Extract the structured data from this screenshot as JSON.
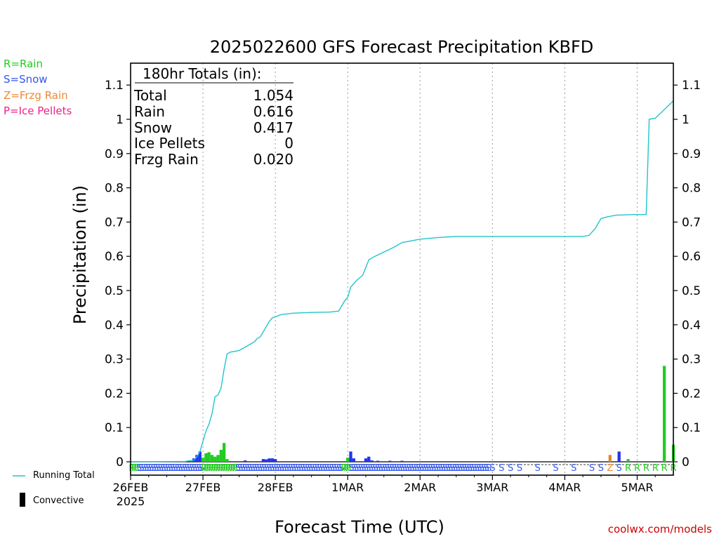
{
  "chart_data": {
    "type": "bar+line",
    "title": "2025022600 GFS Forecast Precipitation KBFD",
    "xlabel": "Forecast Time (UTC)",
    "ylabel": "Precipitation (in)",
    "ylim": [
      0,
      1.15
    ],
    "y_ticks": [
      0,
      0.1,
      0.2,
      0.3,
      0.4,
      0.5,
      0.6,
      0.7,
      0.8,
      0.9,
      1,
      1.1
    ],
    "y_tick_labels": [
      "0",
      "0.1",
      "0.2",
      "0.3",
      "0.4",
      "0.5",
      "0.6",
      "0.7",
      "0.8",
      "0.9",
      "1",
      "1.1"
    ],
    "x_range_hours": [
      0,
      180
    ],
    "x_ticks": [
      {
        "hour": 0,
        "label": "26FEB",
        "sublabel": "2025"
      },
      {
        "hour": 24,
        "label": "27FEB"
      },
      {
        "hour": 48,
        "label": "28FEB"
      },
      {
        "hour": 72,
        "label": "1MAR"
      },
      {
        "hour": 96,
        "label": "2MAR"
      },
      {
        "hour": 120,
        "label": "3MAR"
      },
      {
        "hour": 144,
        "label": "4MAR"
      },
      {
        "hour": 168,
        "label": "5MAR"
      }
    ],
    "grid_vertical": true,
    "totals_box": {
      "title": "180hr Totals (in):",
      "rows": [
        {
          "label": "Total",
          "value": "1.054"
        },
        {
          "label": "Rain",
          "value": "0.616"
        },
        {
          "label": "Snow",
          "value": "0.417"
        },
        {
          "label": "Ice Pellets",
          "value": "0"
        },
        {
          "label": "Frzg Rain",
          "value": "0.020"
        }
      ]
    },
    "ptype_legend": [
      {
        "code": "R",
        "text": "R=Rain",
        "color": "#22cc22"
      },
      {
        "code": "S",
        "text": "S=Snow",
        "color": "#3355ee"
      },
      {
        "code": "Z",
        "text": "Z=Frzg Rain",
        "color": "#ee8833"
      },
      {
        "code": "P",
        "text": "P=Ice Pellets",
        "color": "#ee2288"
      }
    ],
    "colors": {
      "rain": "#22cc22",
      "snow": "#2233ee",
      "frzg": "#dd8833",
      "total_line": "#22c4cc",
      "grid": "#999999"
    },
    "running_total": [
      [
        0,
        0
      ],
      [
        18,
        0.001
      ],
      [
        21,
        0.005
      ],
      [
        22,
        0.015
      ],
      [
        23,
        0.03
      ],
      [
        24,
        0.06
      ],
      [
        25,
        0.09
      ],
      [
        26,
        0.11
      ],
      [
        27,
        0.14
      ],
      [
        28,
        0.19
      ],
      [
        29,
        0.195
      ],
      [
        30,
        0.215
      ],
      [
        31,
        0.27
      ],
      [
        32,
        0.315
      ],
      [
        33,
        0.32
      ],
      [
        36,
        0.325
      ],
      [
        38,
        0.335
      ],
      [
        40,
        0.345
      ],
      [
        41,
        0.35
      ],
      [
        42,
        0.36
      ],
      [
        43,
        0.365
      ],
      [
        44,
        0.38
      ],
      [
        45,
        0.395
      ],
      [
        46,
        0.41
      ],
      [
        47,
        0.42
      ],
      [
        50,
        0.43
      ],
      [
        54,
        0.434
      ],
      [
        60,
        0.436
      ],
      [
        66,
        0.437
      ],
      [
        69,
        0.44
      ],
      [
        71,
        0.47
      ],
      [
        72,
        0.48
      ],
      [
        73,
        0.51
      ],
      [
        75,
        0.53
      ],
      [
        77,
        0.545
      ],
      [
        79,
        0.59
      ],
      [
        81,
        0.6
      ],
      [
        87,
        0.625
      ],
      [
        90,
        0.64
      ],
      [
        96,
        0.65
      ],
      [
        102,
        0.655
      ],
      [
        108,
        0.658
      ],
      [
        150,
        0.658
      ],
      [
        152,
        0.661
      ],
      [
        154,
        0.68
      ],
      [
        156,
        0.71
      ],
      [
        158,
        0.715
      ],
      [
        161,
        0.72
      ],
      [
        167,
        0.722
      ],
      [
        171,
        0.722
      ],
      [
        172,
        1.0
      ],
      [
        174,
        1.003
      ],
      [
        180,
        1.054
      ]
    ],
    "bars": [
      {
        "h": 21,
        "v": 0.01,
        "t": "S"
      },
      {
        "h": 22,
        "v": 0.02,
        "t": "S"
      },
      {
        "h": 23,
        "v": 0.03,
        "t": "S"
      },
      {
        "h": 24,
        "v": 0.012,
        "t": "R"
      },
      {
        "h": 25,
        "v": 0.025,
        "t": "R"
      },
      {
        "h": 26,
        "v": 0.028,
        "t": "R"
      },
      {
        "h": 27,
        "v": 0.02,
        "t": "R"
      },
      {
        "h": 28,
        "v": 0.015,
        "t": "R"
      },
      {
        "h": 29,
        "v": 0.02,
        "t": "R"
      },
      {
        "h": 30,
        "v": 0.035,
        "t": "R"
      },
      {
        "h": 31,
        "v": 0.055,
        "t": "R"
      },
      {
        "h": 32,
        "v": 0.008,
        "t": "R"
      },
      {
        "h": 38,
        "v": 0.004,
        "t": "S"
      },
      {
        "h": 44,
        "v": 0.008,
        "t": "S"
      },
      {
        "h": 45,
        "v": 0.007,
        "t": "S"
      },
      {
        "h": 46,
        "v": 0.01,
        "t": "S"
      },
      {
        "h": 47,
        "v": 0.01,
        "t": "S"
      },
      {
        "h": 48,
        "v": 0.008,
        "t": "S"
      },
      {
        "h": 72,
        "v": 0.012,
        "t": "R"
      },
      {
        "h": 73,
        "v": 0.03,
        "t": "S"
      },
      {
        "h": 74,
        "v": 0.01,
        "t": "S"
      },
      {
        "h": 78,
        "v": 0.01,
        "t": "S"
      },
      {
        "h": 79,
        "v": 0.015,
        "t": "S"
      },
      {
        "h": 80,
        "v": 0.004,
        "t": "S"
      },
      {
        "h": 82,
        "v": 0.003,
        "t": "S"
      },
      {
        "h": 86,
        "v": 0.003,
        "t": "S"
      },
      {
        "h": 90,
        "v": 0.003,
        "t": "S"
      },
      {
        "h": 159,
        "v": 0.02,
        "t": "Z"
      },
      {
        "h": 162,
        "v": 0.03,
        "t": "S"
      },
      {
        "h": 165,
        "v": 0.008,
        "t": "R"
      },
      {
        "h": 177,
        "v": 0.28,
        "t": "R"
      },
      {
        "h": 180,
        "v": 0.05,
        "t": "R"
      }
    ],
    "ptype_strip": [
      {
        "h": 0.4,
        "t": "R"
      },
      {
        "h": 1.2,
        "t": "R"
      },
      {
        "h": 2.0,
        "t": "R"
      },
      {
        "h": 2.8,
        "t": "S"
      },
      {
        "h": 3.6,
        "t": "S"
      },
      {
        "h": 4.4,
        "t": "S"
      },
      {
        "h": 5.2,
        "t": "S"
      },
      {
        "h": 6.0,
        "t": "S"
      },
      {
        "h": 6.8,
        "t": "S"
      },
      {
        "h": 7.6,
        "t": "S"
      },
      {
        "h": 8.4,
        "t": "S"
      },
      {
        "h": 9.2,
        "t": "S"
      },
      {
        "h": 10.0,
        "t": "S"
      },
      {
        "h": 10.8,
        "t": "S"
      },
      {
        "h": 11.6,
        "t": "S"
      },
      {
        "h": 12.4,
        "t": "S"
      },
      {
        "h": 13.2,
        "t": "S"
      },
      {
        "h": 14.0,
        "t": "S"
      },
      {
        "h": 14.8,
        "t": "S"
      },
      {
        "h": 15.6,
        "t": "S"
      },
      {
        "h": 16.4,
        "t": "S"
      },
      {
        "h": 17.2,
        "t": "S"
      },
      {
        "h": 18.0,
        "t": "S"
      },
      {
        "h": 18.8,
        "t": "S"
      },
      {
        "h": 19.6,
        "t": "S"
      },
      {
        "h": 20.4,
        "t": "S"
      },
      {
        "h": 21.2,
        "t": "S"
      },
      {
        "h": 22.0,
        "t": "S"
      },
      {
        "h": 22.8,
        "t": "S"
      },
      {
        "h": 23.6,
        "t": "S"
      },
      {
        "h": 24.4,
        "t": "R"
      },
      {
        "h": 25.2,
        "t": "R"
      },
      {
        "h": 26.0,
        "t": "R"
      },
      {
        "h": 26.8,
        "t": "R"
      },
      {
        "h": 27.6,
        "t": "R"
      },
      {
        "h": 28.4,
        "t": "R"
      },
      {
        "h": 29.2,
        "t": "R"
      },
      {
        "h": 30.0,
        "t": "R"
      },
      {
        "h": 30.8,
        "t": "R"
      },
      {
        "h": 31.6,
        "t": "R"
      },
      {
        "h": 32.4,
        "t": "R"
      },
      {
        "h": 33.2,
        "t": "R"
      },
      {
        "h": 34.0,
        "t": "R"
      },
      {
        "h": 34.8,
        "t": "R"
      },
      {
        "h": 35.6,
        "t": "S"
      },
      {
        "h": 36.4,
        "t": "S"
      },
      {
        "h": 37.2,
        "t": "S"
      },
      {
        "h": 38.0,
        "t": "S"
      },
      {
        "h": 38.8,
        "t": "S"
      },
      {
        "h": 39.6,
        "t": "S"
      },
      {
        "h": 40.4,
        "t": "S"
      },
      {
        "h": 41.2,
        "t": "S"
      },
      {
        "h": 42.0,
        "t": "S"
      },
      {
        "h": 42.8,
        "t": "S"
      },
      {
        "h": 43.6,
        "t": "S"
      },
      {
        "h": 44.4,
        "t": "S"
      },
      {
        "h": 45.2,
        "t": "S"
      },
      {
        "h": 46.0,
        "t": "S"
      },
      {
        "h": 46.8,
        "t": "S"
      },
      {
        "h": 47.6,
        "t": "S"
      },
      {
        "h": 48.4,
        "t": "S"
      },
      {
        "h": 49.2,
        "t": "S"
      },
      {
        "h": 50.0,
        "t": "S"
      },
      {
        "h": 50.8,
        "t": "S"
      },
      {
        "h": 51.6,
        "t": "S"
      },
      {
        "h": 52.4,
        "t": "S"
      },
      {
        "h": 53.2,
        "t": "S"
      },
      {
        "h": 54.0,
        "t": "S"
      },
      {
        "h": 54.8,
        "t": "S"
      },
      {
        "h": 55.6,
        "t": "S"
      },
      {
        "h": 56.4,
        "t": "S"
      },
      {
        "h": 57.2,
        "t": "S"
      },
      {
        "h": 58.0,
        "t": "S"
      },
      {
        "h": 58.8,
        "t": "S"
      },
      {
        "h": 59.6,
        "t": "S"
      },
      {
        "h": 60.4,
        "t": "S"
      },
      {
        "h": 61.2,
        "t": "S"
      },
      {
        "h": 62.0,
        "t": "S"
      },
      {
        "h": 62.8,
        "t": "S"
      },
      {
        "h": 63.6,
        "t": "S"
      },
      {
        "h": 64.4,
        "t": "S"
      },
      {
        "h": 65.2,
        "t": "S"
      },
      {
        "h": 66.0,
        "t": "S"
      },
      {
        "h": 66.8,
        "t": "S"
      },
      {
        "h": 67.6,
        "t": "S"
      },
      {
        "h": 68.4,
        "t": "S"
      },
      {
        "h": 69.2,
        "t": "S"
      },
      {
        "h": 70.0,
        "t": "S"
      },
      {
        "h": 70.8,
        "t": "R"
      },
      {
        "h": 71.6,
        "t": "R"
      },
      {
        "h": 72.4,
        "t": "R"
      },
      {
        "h": 73.2,
        "t": "S"
      },
      {
        "h": 74.0,
        "t": "S"
      },
      {
        "h": 74.8,
        "t": "S"
      },
      {
        "h": 75.6,
        "t": "S"
      },
      {
        "h": 76.4,
        "t": "S"
      },
      {
        "h": 77.2,
        "t": "S"
      },
      {
        "h": 78.0,
        "t": "S"
      },
      {
        "h": 78.8,
        "t": "S"
      },
      {
        "h": 79.6,
        "t": "S"
      },
      {
        "h": 80.4,
        "t": "S"
      },
      {
        "h": 81.2,
        "t": "S"
      },
      {
        "h": 82.0,
        "t": "S"
      },
      {
        "h": 82.8,
        "t": "S"
      },
      {
        "h": 83.6,
        "t": "S"
      },
      {
        "h": 84.4,
        "t": "S"
      },
      {
        "h": 85.2,
        "t": "S"
      },
      {
        "h": 86.0,
        "t": "S"
      },
      {
        "h": 86.8,
        "t": "S"
      },
      {
        "h": 87.6,
        "t": "S"
      },
      {
        "h": 88.4,
        "t": "S"
      },
      {
        "h": 89.2,
        "t": "S"
      },
      {
        "h": 90.0,
        "t": "S"
      },
      {
        "h": 90.8,
        "t": "S"
      },
      {
        "h": 91.6,
        "t": "S"
      },
      {
        "h": 92.4,
        "t": "S"
      },
      {
        "h": 93.2,
        "t": "S"
      },
      {
        "h": 94.0,
        "t": "S"
      },
      {
        "h": 94.8,
        "t": "S"
      },
      {
        "h": 95.6,
        "t": "S"
      },
      {
        "h": 96.4,
        "t": "S"
      },
      {
        "h": 97.2,
        "t": "S"
      },
      {
        "h": 98.0,
        "t": "S"
      },
      {
        "h": 98.8,
        "t": "S"
      },
      {
        "h": 99.6,
        "t": "S"
      },
      {
        "h": 100.4,
        "t": "S"
      },
      {
        "h": 101.2,
        "t": "S"
      },
      {
        "h": 102.0,
        "t": "S"
      },
      {
        "h": 102.8,
        "t": "S"
      },
      {
        "h": 103.6,
        "t": "S"
      },
      {
        "h": 104.4,
        "t": "S"
      },
      {
        "h": 105.2,
        "t": "S"
      },
      {
        "h": 106.0,
        "t": "S"
      },
      {
        "h": 106.8,
        "t": "S"
      },
      {
        "h": 107.6,
        "t": "S"
      },
      {
        "h": 108.4,
        "t": "S"
      },
      {
        "h": 109.2,
        "t": "S"
      },
      {
        "h": 110.0,
        "t": "S"
      },
      {
        "h": 110.8,
        "t": "S"
      },
      {
        "h": 111.6,
        "t": "S"
      },
      {
        "h": 112.4,
        "t": "S"
      },
      {
        "h": 113.2,
        "t": "S"
      },
      {
        "h": 114.0,
        "t": "S"
      },
      {
        "h": 114.8,
        "t": "S"
      },
      {
        "h": 115.6,
        "t": "S"
      },
      {
        "h": 116.4,
        "t": "S"
      },
      {
        "h": 117.2,
        "t": "S"
      },
      {
        "h": 118.0,
        "t": "S"
      },
      {
        "h": 118.8,
        "t": "S"
      },
      {
        "h": 120,
        "t": "S"
      },
      {
        "h": 123,
        "t": "S"
      },
      {
        "h": 126,
        "t": "S"
      },
      {
        "h": 129,
        "t": "S"
      },
      {
        "h": 135,
        "t": "S"
      },
      {
        "h": 141,
        "t": "S"
      },
      {
        "h": 147,
        "t": "S"
      },
      {
        "h": 153,
        "t": "S"
      },
      {
        "h": 156,
        "t": "S"
      },
      {
        "h": 159,
        "t": "Z"
      },
      {
        "h": 162,
        "t": "S"
      },
      {
        "h": 165,
        "t": "R"
      },
      {
        "h": 168,
        "t": "R"
      },
      {
        "h": 171,
        "t": "R"
      },
      {
        "h": 174,
        "t": "R"
      },
      {
        "h": 177,
        "t": "R"
      },
      {
        "h": 180,
        "t": "R"
      }
    ],
    "legend": {
      "running_total_label": "Running Total",
      "convective_label": "Convective"
    }
  },
  "credit": "coolwx.com/models"
}
